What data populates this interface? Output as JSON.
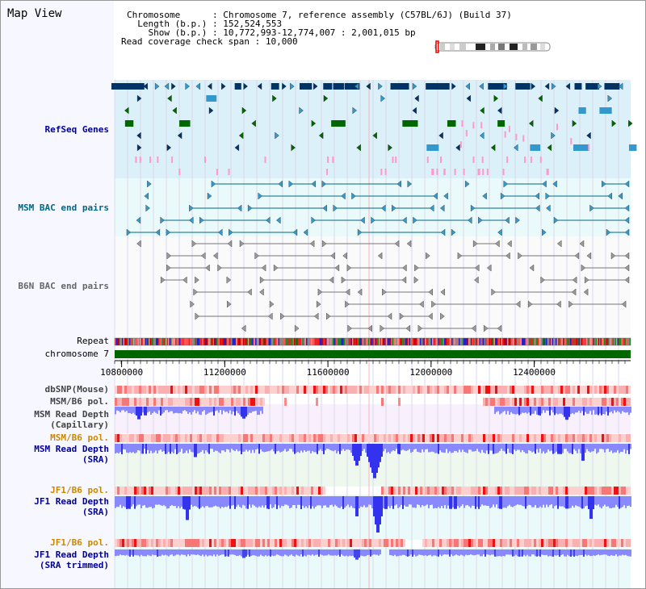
{
  "title": "Map View",
  "info": {
    "chromosome_key": "Chromosome",
    "chromosome_value": "Chromosome 7, reference assembly (C57BL/6J) (Build 37)",
    "length_key": "Length (b.p.)",
    "length_value": "152,524,553",
    "show_key": "Show (b.p.)",
    "show_value": "10,772,993-12,774,007 : 2,001,015 bp",
    "span_key": "Read coverage check span",
    "span_value": "10,000"
  },
  "tracks": {
    "refseq": "RefSeq Genes",
    "msm_bac": "MSM BAC end pairs",
    "b6n_bac": "B6N BAC end pairs",
    "repeat": "Repeat",
    "chromosome": "chromosome 7",
    "dbsnp": "dbSNP(Mouse)",
    "msm_b6_pol1": "MSM/B6 pol.",
    "msm_depth_cap_1": "MSM Read Depth",
    "msm_depth_cap_2": "(Capillary)",
    "msm_b6_pol2": "MSM/B6 pol.",
    "msm_depth_sra_1": "MSM Read Depth",
    "msm_depth_sra_2": "(SRA)",
    "jf1_b6_pol1": "JF1/B6 pol.",
    "jf1_depth_sra_1": "JF1 Read Depth",
    "jf1_depth_sra_2": "(SRA)",
    "jf1_b6_pol2": "JF1/B6 pol.",
    "jf1_depth_trim_1": "JF1 Read Depth",
    "jf1_depth_trim_2": "(SRA trimmed)"
  },
  "axis_ticks": [
    "10800000",
    "11200000",
    "11600000",
    "12000000",
    "12400000"
  ],
  "axis_tick_values": [
    10800000,
    11200000,
    11600000,
    12000000,
    12400000
  ],
  "view_start": 10772993,
  "view_end": 12774007,
  "chromosome_length": 152524553,
  "colors": {
    "refseq_bg": "#dcf0fa",
    "bac_bg": "#eafafa",
    "gene_navy": "#003366",
    "gene_blue": "#3399cc",
    "gene_green": "#006600",
    "gene_pink": "#ff99cc",
    "msm_bac": "#006688",
    "b6n_bac": "#777777",
    "chrom_green": "#006600",
    "depth_blue": "#4444ee",
    "depth_light": "#8888ff",
    "pol_red": "#ee3333",
    "label_blue": "#000099",
    "label_orange": "#cc8800"
  }
}
